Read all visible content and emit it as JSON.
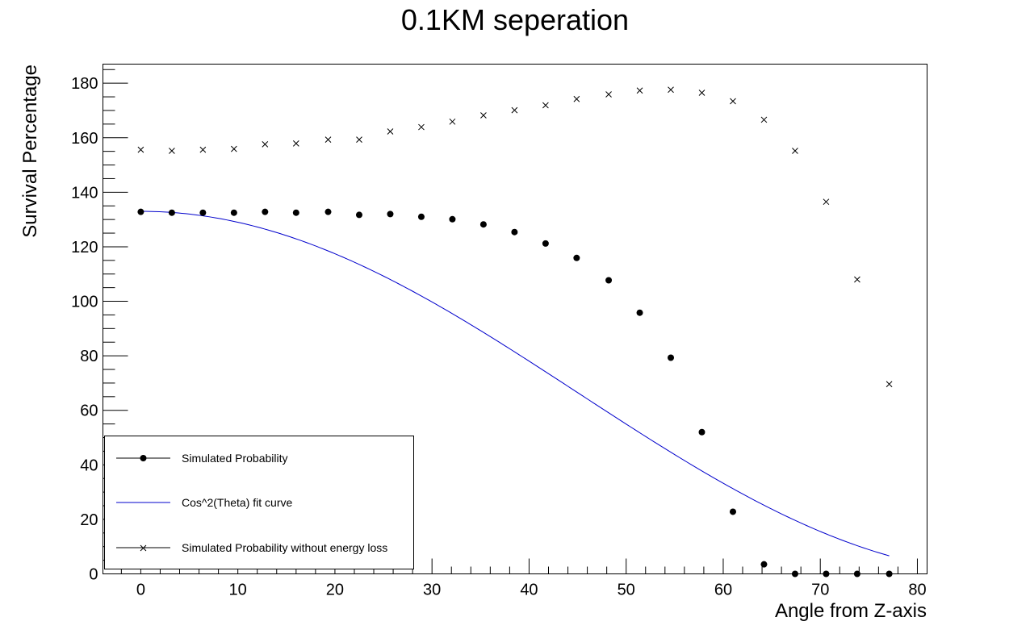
{
  "chart_data": {
    "type": "scatter",
    "title": "0.1KM seperation",
    "xlabel": "Angle from Z-axis",
    "ylabel": "Survival Percentage",
    "xlim": [
      -3.9,
      81
    ],
    "ylim": [
      0,
      187
    ],
    "xticks": [
      0,
      10,
      20,
      30,
      40,
      50,
      60,
      70,
      80
    ],
    "yticks": [
      0,
      20,
      40,
      60,
      80,
      100,
      120,
      140,
      160,
      180
    ],
    "grid": false,
    "legend_position": "bottom-left",
    "series": [
      {
        "name": "Simulated Probability",
        "marker": "dot",
        "color": "#000000",
        "x": [
          0,
          3.2,
          6.4,
          9.6,
          12.8,
          16.0,
          19.3,
          22.5,
          25.7,
          28.9,
          32.1,
          35.3,
          38.5,
          41.7,
          44.9,
          48.2,
          51.4,
          54.6,
          57.8,
          61.0,
          64.2,
          67.4,
          70.6,
          73.8,
          77.1
        ],
        "y": [
          132.8,
          132.5,
          132.5,
          132.5,
          132.8,
          132.5,
          132.8,
          131.7,
          132.0,
          131.0,
          130.1,
          128.2,
          125.4,
          121.2,
          115.9,
          107.7,
          95.8,
          79.3,
          52.0,
          22.8,
          3.5,
          0,
          0,
          0,
          0
        ]
      },
      {
        "name": "Cos^2(Theta) fit curve",
        "marker": "line",
        "color": "#0000cc",
        "amplitude": 133,
        "x_start": 0,
        "x_end": 77.1
      },
      {
        "name": "Simulated Probability without energy loss",
        "marker": "cross",
        "color": "#000000",
        "x": [
          0,
          3.2,
          6.4,
          9.6,
          12.8,
          16.0,
          19.3,
          22.5,
          25.7,
          28.9,
          32.1,
          35.3,
          38.5,
          41.7,
          44.9,
          48.2,
          51.4,
          54.6,
          57.8,
          61.0,
          64.2,
          67.4,
          70.6,
          73.8,
          77.1
        ],
        "y": [
          155.6,
          155.2,
          155.6,
          155.9,
          157.6,
          157.9,
          159.3,
          159.3,
          162.3,
          163.9,
          165.9,
          168.2,
          170.1,
          171.9,
          174.2,
          175.9,
          177.3,
          177.6,
          176.5,
          173.4,
          166.6,
          155.2,
          136.5,
          108.0,
          69.6
        ]
      }
    ]
  }
}
